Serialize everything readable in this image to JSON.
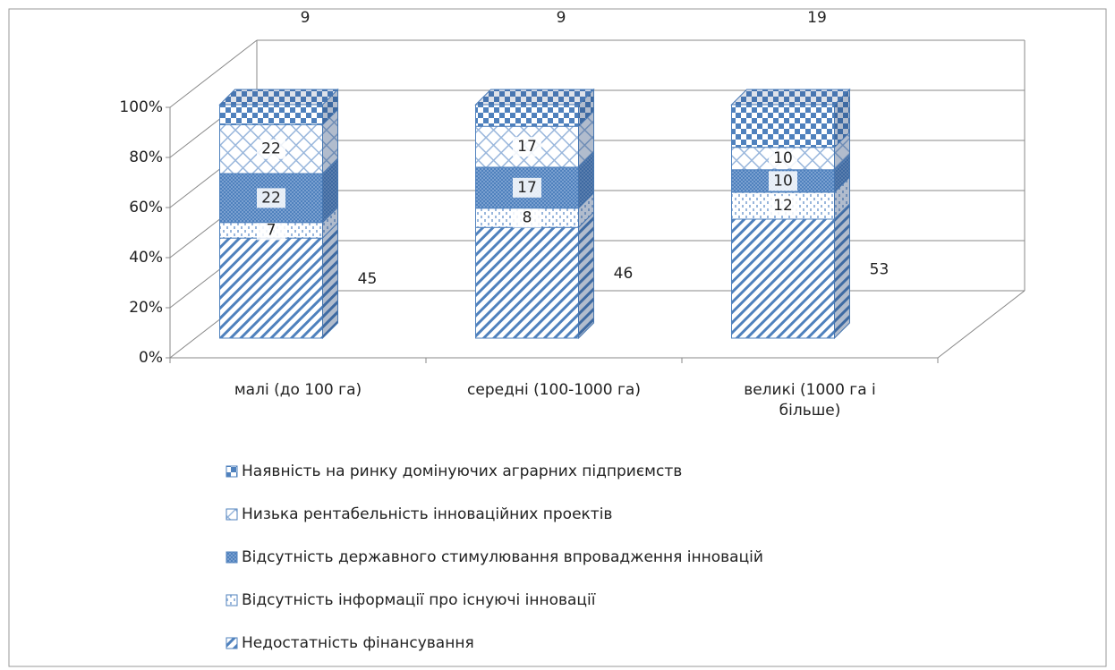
{
  "chart_data": {
    "type": "stacked_percent_bar_3d",
    "categories": [
      "малі (до 100 га)",
      "середні (100-1000 га)",
      "великі (1000 га і більше)"
    ],
    "series": [
      {
        "name": "Недостатність фінансування",
        "color": "#4f81bd",
        "values": [
          45,
          46,
          53
        ]
      },
      {
        "name": "Відсутність інформації про існуючі інновації",
        "color": "#4f81bd",
        "values": [
          7,
          8,
          12
        ]
      },
      {
        "name": "Відсутність державного стимулювання впровадження інновацій",
        "color": "#4f81bd",
        "values": [
          22,
          17,
          10
        ]
      },
      {
        "name": "Низька рентабельність інноваційних проектів",
        "color": "#4f81bd",
        "values": [
          22,
          17,
          10
        ]
      },
      {
        "name": "Наявність на ринку домінуючих аграрних підприємств",
        "color": "#4f81bd",
        "values": [
          9,
          9,
          19
        ]
      }
    ],
    "ylim": [
      0,
      100
    ],
    "yticks": [
      {
        "value": 0,
        "label": "0%"
      },
      {
        "value": 20,
        "label": "20%"
      },
      {
        "value": 40,
        "label": "40%"
      },
      {
        "value": 60,
        "label": "60%"
      },
      {
        "value": 80,
        "label": "80%"
      },
      {
        "value": 100,
        "label": "100%"
      }
    ],
    "grid": true,
    "legend": "bottom"
  }
}
